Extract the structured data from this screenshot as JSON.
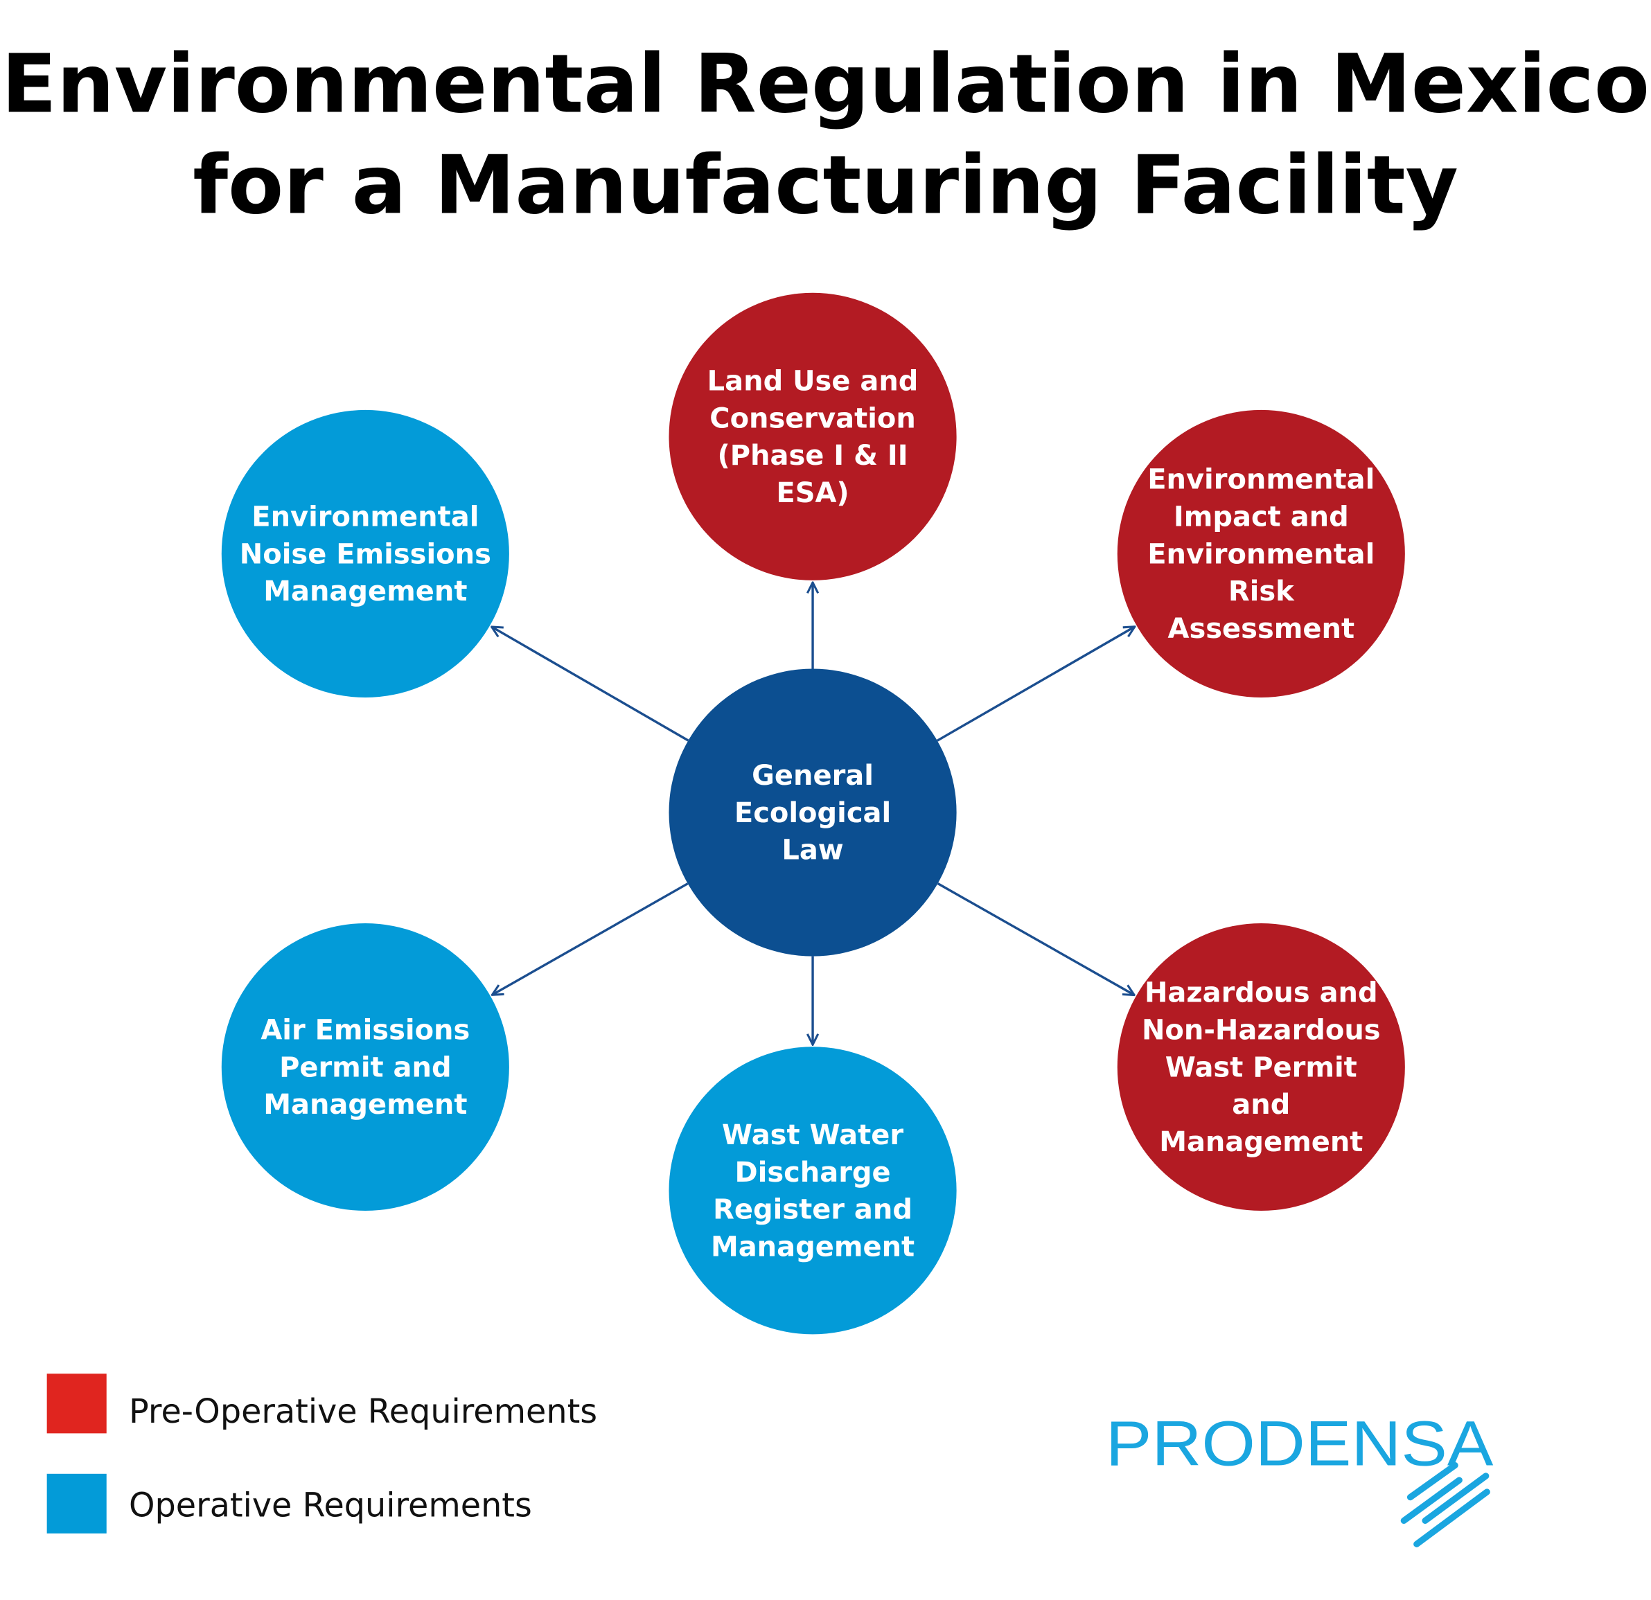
{
  "title": {
    "line1": "Environmental Regulation in Mexico",
    "line2": "for a Manufacturing Facility"
  },
  "colors": {
    "pre_operative": "#b31b23",
    "operative": "#039bd8",
    "center": "#0c4f91",
    "arrow": "#1b4e8f",
    "legend_red": "#e0251f",
    "logo": "#1aa6e0"
  },
  "center": {
    "lines": [
      "General",
      "Ecological",
      "Law"
    ]
  },
  "nodes": [
    {
      "id": "land-use",
      "type": "pre_operative",
      "lines": [
        "Land Use and",
        "Conservation",
        "(Phase I & II",
        "ESA)"
      ]
    },
    {
      "id": "environmental-impact",
      "type": "pre_operative",
      "lines": [
        "Environmental",
        "Impact and",
        "Environmental",
        "Risk",
        "Assessment"
      ]
    },
    {
      "id": "hazardous-waste",
      "type": "pre_operative",
      "lines": [
        "Hazardous and",
        "Non-Hazardous",
        "Wast Permit",
        "and",
        "Management"
      ]
    },
    {
      "id": "waste-water",
      "type": "operative",
      "lines": [
        "Wast Water",
        "Discharge",
        "Register and",
        "Management"
      ]
    },
    {
      "id": "air-emissions",
      "type": "operative",
      "lines": [
        "Air Emissions",
        "Permit and",
        "Management"
      ]
    },
    {
      "id": "noise-emissions",
      "type": "operative",
      "lines": [
        "Environmental",
        "Noise Emissions",
        "Management"
      ]
    }
  ],
  "legend": [
    {
      "label": "Pre-Operative Requirements",
      "type": "pre_operative"
    },
    {
      "label": "Operative Requirements",
      "type": "operative"
    }
  ],
  "logo": {
    "text": "PRODENSA"
  }
}
